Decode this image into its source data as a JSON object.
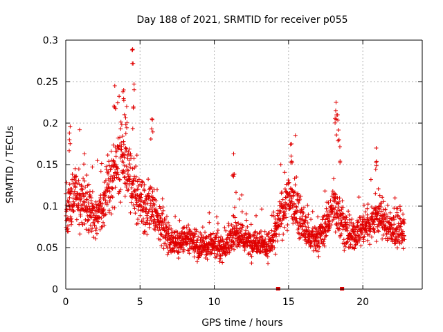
{
  "chart_data": {
    "type": "scatter",
    "title": "Day 188 of 2021, SRMTID for receiver p055",
    "xlabel": "GPS time / hours",
    "ylabel": "SRMTID / TECUs",
    "xlim": [
      0,
      24
    ],
    "ylim": [
      0,
      0.3
    ],
    "xticks": [
      0,
      5,
      10,
      15,
      20
    ],
    "xtick_labels": [
      "0",
      "5",
      "10",
      "15",
      "20"
    ],
    "yticks": [
      0,
      0.05,
      0.1,
      0.15,
      0.2,
      0.25,
      0.3
    ],
    "ytick_labels": [
      "0",
      "0.05",
      "0.1",
      "0.15",
      "0.2",
      "0.25",
      "0.3"
    ],
    "grid": true,
    "marker": "+",
    "color": "#e00000",
    "series_name": "SRMTID",
    "x_range": [
      0,
      22.8
    ],
    "trend": [
      [
        0.0,
        0.095
      ],
      [
        0.5,
        0.11
      ],
      [
        1.0,
        0.105
      ],
      [
        1.5,
        0.1
      ],
      [
        2.0,
        0.09
      ],
      [
        2.5,
        0.1
      ],
      [
        3.0,
        0.13
      ],
      [
        3.5,
        0.15
      ],
      [
        4.0,
        0.155
      ],
      [
        4.5,
        0.13
      ],
      [
        5.0,
        0.1
      ],
      [
        5.5,
        0.095
      ],
      [
        6.0,
        0.09
      ],
      [
        6.5,
        0.075
      ],
      [
        7.0,
        0.06
      ],
      [
        7.5,
        0.055
      ],
      [
        8.0,
        0.06
      ],
      [
        8.5,
        0.055
      ],
      [
        9.0,
        0.05
      ],
      [
        9.5,
        0.05
      ],
      [
        10.0,
        0.055
      ],
      [
        10.5,
        0.05
      ],
      [
        11.0,
        0.055
      ],
      [
        11.5,
        0.07
      ],
      [
        12.0,
        0.06
      ],
      [
        12.5,
        0.055
      ],
      [
        13.0,
        0.06
      ],
      [
        13.5,
        0.05
      ],
      [
        14.0,
        0.06
      ],
      [
        14.5,
        0.09
      ],
      [
        15.0,
        0.11
      ],
      [
        15.5,
        0.1
      ],
      [
        16.0,
        0.075
      ],
      [
        16.5,
        0.06
      ],
      [
        17.0,
        0.06
      ],
      [
        17.5,
        0.075
      ],
      [
        18.0,
        0.1
      ],
      [
        18.5,
        0.09
      ],
      [
        19.0,
        0.06
      ],
      [
        19.5,
        0.065
      ],
      [
        20.0,
        0.075
      ],
      [
        20.5,
        0.08
      ],
      [
        21.0,
        0.09
      ],
      [
        21.5,
        0.08
      ],
      [
        22.0,
        0.07
      ],
      [
        22.8,
        0.07
      ]
    ],
    "peaks": [
      {
        "x": 0.3,
        "y": 0.196
      },
      {
        "x": 3.3,
        "y": 0.245
      },
      {
        "x": 3.9,
        "y": 0.24
      },
      {
        "x": 4.1,
        "y": 0.22
      },
      {
        "x": 4.5,
        "y": 0.289
      },
      {
        "x": 4.6,
        "y": 0.247
      },
      {
        "x": 5.8,
        "y": 0.205
      },
      {
        "x": 11.3,
        "y": 0.163
      },
      {
        "x": 15.2,
        "y": 0.175
      },
      {
        "x": 18.2,
        "y": 0.225
      },
      {
        "x": 18.3,
        "y": 0.21
      },
      {
        "x": 18.4,
        "y": 0.18
      },
      {
        "x": 20.9,
        "y": 0.17
      }
    ],
    "gaps_at_zero": [
      14.3,
      18.6
    ]
  }
}
